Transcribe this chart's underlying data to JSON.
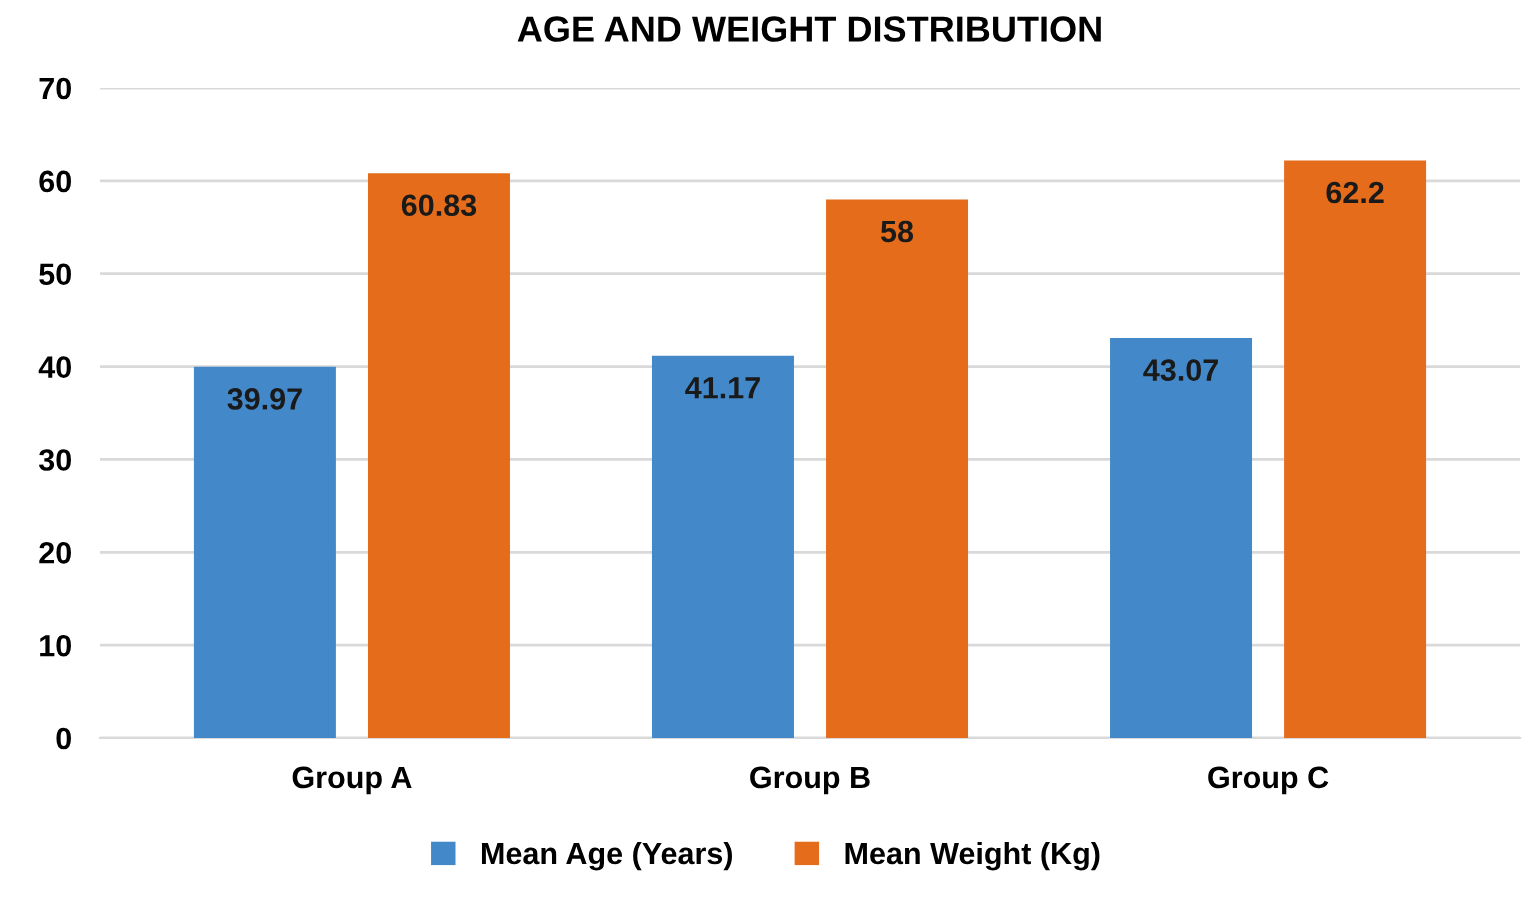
{
  "chart_data": {
    "type": "bar",
    "title": "AGE AND WEIGHT DISTRIBUTION",
    "categories": [
      "Group A",
      "Group B",
      "Group C"
    ],
    "series": [
      {
        "name": "Mean Age (Years)",
        "color": "#4389c9",
        "values": [
          39.97,
          41.17,
          43.07
        ]
      },
      {
        "name": "Mean Weight (Kg)",
        "color": "#e46c1a",
        "values": [
          60.83,
          58,
          62.2
        ]
      }
    ],
    "ylim": [
      0,
      70
    ],
    "yticks": [
      0,
      10,
      20,
      30,
      40,
      50,
      60,
      70
    ],
    "grid": "y",
    "legend": "bottom",
    "data_labels": true
  }
}
